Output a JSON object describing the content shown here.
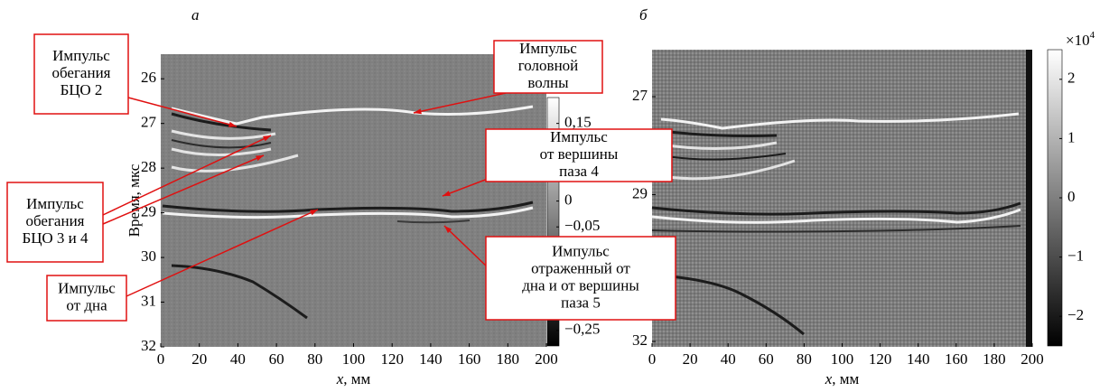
{
  "chart_data": [
    {
      "type": "heatmap",
      "panel_label": "а",
      "xlabel_var": "x",
      "xlabel_unit": ", мм",
      "ylabel": "Время, мкс",
      "xlim": [
        0,
        200
      ],
      "xticks": [
        0,
        20,
        40,
        60,
        80,
        100,
        120,
        140,
        160,
        180,
        200
      ],
      "ylim": [
        25.45,
        32
      ],
      "y_inverted": true,
      "yticks": [
        26,
        27,
        28,
        29,
        30,
        31,
        32
      ],
      "colorbar": {
        "lim": [
          -0.28,
          0.2
        ],
        "ticks": [
          {
            "value": 0.15,
            "label": "0,15"
          },
          0,
          {
            "value": -0.05,
            "label": "−0,05"
          },
          {
            "value": -0.25,
            "label": "−0,25"
          }
        ]
      },
      "annotations": [
        {
          "lines": [
            "Импульс",
            "обегания",
            "БЦО 2"
          ]
        },
        {
          "lines": [
            "Импульс",
            "головной",
            "волны"
          ]
        },
        {
          "lines": [
            "Импульс",
            "от вершины",
            "паза 4"
          ]
        },
        {
          "lines": [
            "Импульс",
            "обегания",
            "БЦО 3 и 4"
          ]
        },
        {
          "lines": [
            "Импульс",
            "отраженный от",
            "дна и от вершины",
            "паза 5"
          ]
        },
        {
          "lines": [
            "Импульс",
            "от дна"
          ]
        }
      ]
    },
    {
      "type": "heatmap",
      "panel_label": "б",
      "xlabel_var": "x",
      "xlabel_unit": ", мм",
      "xlim": [
        0,
        200
      ],
      "xticks": [
        0,
        20,
        40,
        60,
        80,
        100,
        120,
        140,
        160,
        180,
        200
      ],
      "ylim": [
        26.04,
        32.11
      ],
      "y_inverted": true,
      "yticks": [
        27,
        29,
        32
      ],
      "colorbar": {
        "lim": [
          -2.5,
          2.5
        ],
        "multiplier": "×10",
        "exponent": 4,
        "ticks": [
          2,
          1,
          0,
          {
            "value": -1,
            "label": "−1"
          },
          {
            "value": -2,
            "label": "−2"
          }
        ]
      }
    }
  ]
}
